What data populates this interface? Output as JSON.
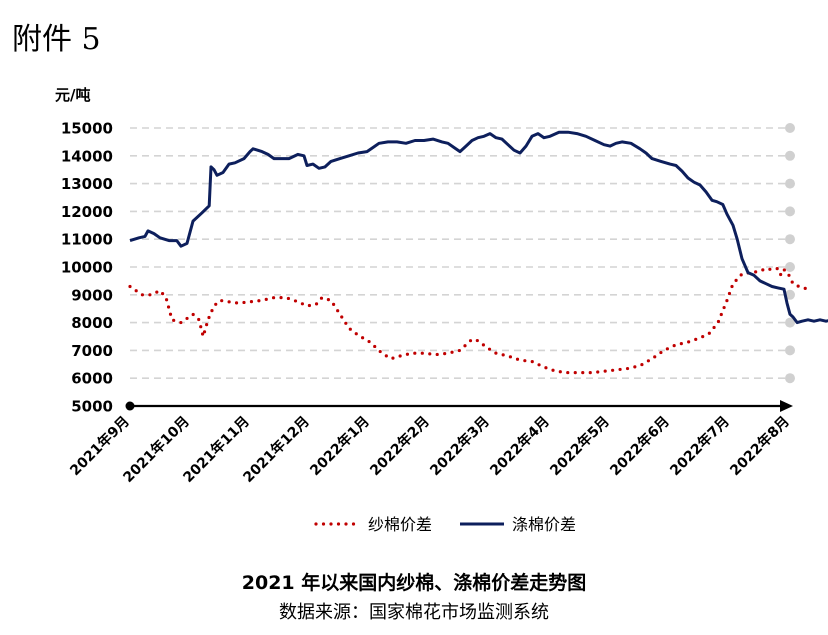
{
  "attachment_label": "附件 5",
  "caption": {
    "title": "2021 年以来国内纱棉、涤棉价差走势图",
    "source": "数据来源：国家棉花市场监测系统"
  },
  "chart_data": {
    "type": "line",
    "ylabel": "元/吨",
    "ylim": [
      5000,
      15000
    ],
    "yticks": [
      5000,
      6000,
      7000,
      8000,
      9000,
      10000,
      11000,
      12000,
      13000,
      14000,
      15000
    ],
    "categories": [
      "2021年9月",
      "2021年10月",
      "2021年11月",
      "2021年12月",
      "2022年1月",
      "2022年2月",
      "2022年3月",
      "2022年4月",
      "2022年5月",
      "2022年6月",
      "2022年7月",
      "2022年8月"
    ],
    "grid": true,
    "legend_position": "bottom",
    "series": [
      {
        "name": "纱棉价差",
        "style": "dotted",
        "color": "#c00000",
        "values": [
          [
            0.0,
            9300
          ],
          [
            0.1,
            9150
          ],
          [
            0.2,
            9000
          ],
          [
            0.35,
            9000
          ],
          [
            0.5,
            9150
          ],
          [
            0.6,
            8900
          ],
          [
            0.7,
            8100
          ],
          [
            0.85,
            8000
          ],
          [
            1.05,
            8300
          ],
          [
            1.15,
            8100
          ],
          [
            1.22,
            7500
          ],
          [
            1.3,
            8100
          ],
          [
            1.4,
            8600
          ],
          [
            1.5,
            8800
          ],
          [
            1.65,
            8750
          ],
          [
            1.8,
            8700
          ],
          [
            2.0,
            8750
          ],
          [
            2.2,
            8800
          ],
          [
            2.4,
            8900
          ],
          [
            2.6,
            8900
          ],
          [
            2.8,
            8750
          ],
          [
            2.95,
            8600
          ],
          [
            3.1,
            8650
          ],
          [
            3.2,
            8900
          ],
          [
            3.35,
            8800
          ],
          [
            3.5,
            8300
          ],
          [
            3.65,
            7800
          ],
          [
            3.8,
            7550
          ],
          [
            4.0,
            7300
          ],
          [
            4.2,
            6900
          ],
          [
            4.35,
            6700
          ],
          [
            4.5,
            6800
          ],
          [
            4.7,
            6900
          ],
          [
            4.9,
            6900
          ],
          [
            5.1,
            6850
          ],
          [
            5.3,
            6900
          ],
          [
            5.5,
            7000
          ],
          [
            5.6,
            7200
          ],
          [
            5.7,
            7400
          ],
          [
            5.8,
            7350
          ],
          [
            5.95,
            7100
          ],
          [
            6.1,
            6900
          ],
          [
            6.3,
            6800
          ],
          [
            6.5,
            6650
          ],
          [
            6.7,
            6600
          ],
          [
            6.9,
            6400
          ],
          [
            7.1,
            6250
          ],
          [
            7.3,
            6200
          ],
          [
            7.5,
            6200
          ],
          [
            7.7,
            6200
          ],
          [
            7.9,
            6250
          ],
          [
            8.1,
            6300
          ],
          [
            8.3,
            6350
          ],
          [
            8.5,
            6450
          ],
          [
            8.7,
            6700
          ],
          [
            8.9,
            7000
          ],
          [
            9.1,
            7200
          ],
          [
            9.3,
            7300
          ],
          [
            9.5,
            7450
          ],
          [
            9.65,
            7600
          ],
          [
            9.8,
            8000
          ],
          [
            9.95,
            8800
          ],
          [
            10.05,
            9400
          ],
          [
            10.2,
            9750
          ],
          [
            10.35,
            9800
          ],
          [
            10.5,
            9850
          ],
          [
            10.6,
            9950
          ],
          [
            10.7,
            9900
          ],
          [
            10.8,
            9950
          ],
          [
            10.85,
            9700
          ],
          [
            10.9,
            9900
          ],
          [
            10.95,
            9850
          ],
          [
            11.05,
            9400
          ],
          [
            11.2,
            9250
          ],
          [
            11.35,
            9200
          ]
        ]
      },
      {
        "name": "涤棉价差",
        "style": "solid",
        "color": "#0d1f5c",
        "values": [
          [
            0.0,
            10950
          ],
          [
            0.15,
            11050
          ],
          [
            0.25,
            11100
          ],
          [
            0.3,
            11300
          ],
          [
            0.4,
            11200
          ],
          [
            0.5,
            11050
          ],
          [
            0.65,
            10950
          ],
          [
            0.78,
            10950
          ],
          [
            0.85,
            10750
          ],
          [
            0.95,
            10850
          ],
          [
            1.05,
            11650
          ],
          [
            1.2,
            11950
          ],
          [
            1.32,
            12200
          ],
          [
            1.35,
            13600
          ],
          [
            1.4,
            13500
          ],
          [
            1.45,
            13300
          ],
          [
            1.55,
            13400
          ],
          [
            1.65,
            13700
          ],
          [
            1.75,
            13750
          ],
          [
            1.9,
            13900
          ],
          [
            2.0,
            14150
          ],
          [
            2.05,
            14250
          ],
          [
            2.2,
            14150
          ],
          [
            2.3,
            14050
          ],
          [
            2.4,
            13900
          ],
          [
            2.5,
            13900
          ],
          [
            2.65,
            13900
          ],
          [
            2.8,
            14050
          ],
          [
            2.9,
            14000
          ],
          [
            2.95,
            13650
          ],
          [
            3.05,
            13700
          ],
          [
            3.15,
            13550
          ],
          [
            3.25,
            13600
          ],
          [
            3.35,
            13800
          ],
          [
            3.5,
            13900
          ],
          [
            3.65,
            14000
          ],
          [
            3.8,
            14100
          ],
          [
            3.95,
            14150
          ],
          [
            4.05,
            14300
          ],
          [
            4.15,
            14450
          ],
          [
            4.3,
            14500
          ],
          [
            4.45,
            14500
          ],
          [
            4.6,
            14450
          ],
          [
            4.75,
            14550
          ],
          [
            4.9,
            14550
          ],
          [
            5.05,
            14600
          ],
          [
            5.2,
            14500
          ],
          [
            5.3,
            14450
          ],
          [
            5.4,
            14300
          ],
          [
            5.5,
            14150
          ],
          [
            5.6,
            14350
          ],
          [
            5.7,
            14550
          ],
          [
            5.8,
            14650
          ],
          [
            5.9,
            14700
          ],
          [
            6.0,
            14800
          ],
          [
            6.1,
            14650
          ],
          [
            6.2,
            14600
          ],
          [
            6.3,
            14400
          ],
          [
            6.4,
            14200
          ],
          [
            6.5,
            14100
          ],
          [
            6.6,
            14350
          ],
          [
            6.7,
            14700
          ],
          [
            6.8,
            14800
          ],
          [
            6.9,
            14650
          ],
          [
            7.0,
            14700
          ],
          [
            7.15,
            14850
          ],
          [
            7.3,
            14850
          ],
          [
            7.45,
            14800
          ],
          [
            7.6,
            14700
          ],
          [
            7.75,
            14550
          ],
          [
            7.9,
            14400
          ],
          [
            8.0,
            14350
          ],
          [
            8.1,
            14450
          ],
          [
            8.2,
            14500
          ],
          [
            8.35,
            14450
          ],
          [
            8.5,
            14250
          ],
          [
            8.6,
            14100
          ],
          [
            8.7,
            13900
          ],
          [
            8.85,
            13800
          ],
          [
            9.0,
            13700
          ],
          [
            9.1,
            13650
          ],
          [
            9.2,
            13450
          ],
          [
            9.3,
            13200
          ],
          [
            9.4,
            13050
          ],
          [
            9.5,
            12950
          ],
          [
            9.6,
            12700
          ],
          [
            9.7,
            12400
          ],
          [
            9.78,
            12350
          ],
          [
            9.88,
            12250
          ],
          [
            9.95,
            11900
          ],
          [
            10.05,
            11500
          ],
          [
            10.12,
            11000
          ],
          [
            10.2,
            10300
          ],
          [
            10.3,
            9800
          ],
          [
            10.4,
            9700
          ],
          [
            10.5,
            9500
          ],
          [
            10.6,
            9400
          ],
          [
            10.7,
            9300
          ],
          [
            10.8,
            9250
          ],
          [
            10.9,
            9200
          ],
          [
            10.95,
            8700
          ],
          [
            11.0,
            8300
          ],
          [
            11.05,
            8200
          ],
          [
            11.12,
            8000
          ],
          [
            11.2,
            8050
          ],
          [
            11.3,
            8100
          ],
          [
            11.4,
            8050
          ],
          [
            11.5,
            8100
          ],
          [
            11.6,
            8050
          ],
          [
            11.7,
            8100
          ]
        ]
      }
    ]
  }
}
